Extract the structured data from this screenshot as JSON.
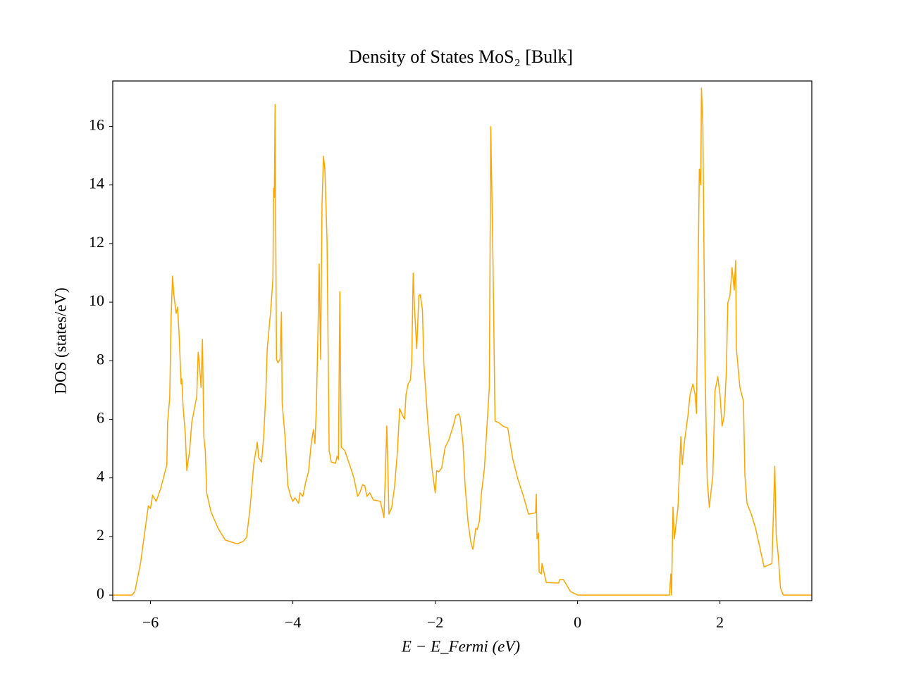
{
  "chart_data": {
    "type": "line",
    "title": "Density of States MoS₂ [Bulk]",
    "xlabel": "E − E_Fermi (eV)",
    "ylabel": "DOS (states/eV)",
    "color": "#ffa500",
    "xlim": [
      -6.53,
      3.29
    ],
    "ylim": [
      -0.19,
      17.55
    ],
    "xticks": [
      {
        "value": -6,
        "label": "−6"
      },
      {
        "value": -4,
        "label": "−4"
      },
      {
        "value": -2,
        "label": "−2"
      },
      0,
      2
    ],
    "yticks": [
      0,
      2,
      4,
      6,
      8,
      10,
      12,
      14,
      16
    ],
    "x": [
      -6.53,
      -6.26,
      -6.22,
      -6.14,
      -6.06,
      -6.03,
      -6.0,
      -5.97,
      -5.92,
      -5.86,
      -5.77,
      -5.76,
      -5.73,
      -5.71,
      -5.69,
      -5.67,
      -5.64,
      -5.62,
      -5.6,
      -5.57,
      -5.56,
      -5.54,
      -5.51,
      -5.49,
      -5.45,
      -5.42,
      -5.35,
      -5.33,
      -5.31,
      -5.29,
      -5.27,
      -5.25,
      -5.23,
      -5.21,
      -5.15,
      -5.05,
      -4.95,
      -4.85,
      -4.78,
      -4.7,
      -4.65,
      -4.6,
      -4.55,
      -4.5,
      -4.48,
      -4.44,
      -4.41,
      -4.38,
      -4.36,
      -4.31,
      -4.28,
      -4.27,
      -4.26,
      -4.25,
      -4.23,
      -4.21,
      -4.18,
      -4.16,
      -4.15,
      -4.11,
      -4.07,
      -4.03,
      -4.0,
      -3.97,
      -3.92,
      -3.9,
      -3.86,
      -3.82,
      -3.78,
      -3.74,
      -3.71,
      -3.69,
      -3.67,
      -3.65,
      -3.63,
      -3.61,
      -3.59,
      -3.57,
      -3.55,
      -3.52,
      -3.49,
      -3.46,
      -3.4,
      -3.38,
      -3.36,
      -3.34,
      -3.32,
      -3.27,
      -3.17,
      -3.14,
      -3.09,
      -3.06,
      -3.02,
      -2.99,
      -2.96,
      -2.92,
      -2.87,
      -2.77,
      -2.72,
      -2.68,
      -2.65,
      -2.61,
      -2.57,
      -2.53,
      -2.5,
      -2.46,
      -2.43,
      -2.41,
      -2.38,
      -2.35,
      -2.33,
      -2.31,
      -2.29,
      -2.26,
      -2.23,
      -2.21,
      -2.18,
      -2.16,
      -2.1,
      -2.04,
      -2.0,
      -1.98,
      -1.95,
      -1.91,
      -1.86,
      -1.81,
      -1.75,
      -1.71,
      -1.67,
      -1.65,
      -1.61,
      -1.58,
      -1.54,
      -1.5,
      -1.47,
      -1.43,
      -1.41,
      -1.38,
      -1.35,
      -1.31,
      -1.27,
      -1.24,
      -1.22,
      -1.19,
      -1.16,
      -1.11,
      -1.05,
      -0.98,
      -0.95,
      -0.91,
      -0.84,
      -0.76,
      -0.69,
      -0.59,
      -0.58,
      -0.57,
      -0.55,
      -0.54,
      -0.51,
      -0.5,
      -0.44,
      -0.27,
      -0.25,
      -0.2,
      -0.1,
      0,
      1.29,
      1.31,
      1.32,
      1.34,
      1.36,
      1.41,
      1.45,
      1.47,
      1.5,
      1.55,
      1.58,
      1.62,
      1.65,
      1.67,
      1.68,
      1.71,
      1.73,
      1.74,
      1.76,
      1.79,
      1.82,
      1.85,
      1.9,
      1.93,
      1.97,
      2.0,
      2.03,
      2.06,
      2.09,
      2.11,
      2.14,
      2.17,
      2.2,
      2.22,
      2.23,
      2.28,
      2.33,
      2.35,
      2.38,
      2.44,
      2.5,
      2.62,
      2.73,
      2.77,
      2.79,
      2.82,
      2.85,
      2.89,
      3.29
    ],
    "values": [
      0,
      0,
      0.12,
      1.08,
      2.52,
      3.05,
      2.96,
      3.41,
      3.2,
      3.61,
      4.45,
      5.89,
      6.73,
      9.5,
      10.89,
      10.22,
      9.62,
      9.83,
      9.01,
      7.21,
      7.38,
      6.37,
      5.48,
      4.25,
      4.93,
      5.89,
      6.78,
      8.29,
      7.81,
      7.09,
      8.73,
      5.41,
      4.93,
      3.49,
      2.84,
      2.28,
      1.88,
      1.8,
      1.75,
      1.83,
      1.97,
      3.0,
      4.45,
      5.22,
      4.69,
      4.54,
      5.41,
      6.85,
      8.41,
      9.74,
      10.82,
      13.89,
      13.58,
      16.75,
      8.05,
      7.93,
      8.05,
      9.66,
      6.56,
      5.41,
      3.73,
      3.37,
      3.2,
      3.32,
      3.13,
      3.49,
      3.37,
      3.85,
      4.21,
      5.22,
      5.65,
      5.17,
      6.37,
      8.65,
      11.3,
      8.05,
      13.34,
      14.98,
      14.54,
      12.14,
      4.93,
      4.54,
      4.5,
      4.74,
      4.62,
      10.36,
      5.05,
      4.93,
      4.21,
      3.97,
      3.37,
      3.49,
      3.77,
      3.73,
      3.37,
      3.49,
      3.25,
      3.2,
      2.64,
      5.77,
      2.76,
      3.0,
      3.73,
      4.93,
      6.37,
      6.13,
      6.01,
      6.85,
      7.21,
      7.33,
      7.93,
      10.99,
      9.74,
      8.41,
      10.22,
      10.26,
      9.74,
      7.93,
      5.77,
      4.21,
      3.49,
      4.25,
      4.21,
      4.33,
      5.05,
      5.29,
      5.75,
      6.13,
      6.18,
      6.06,
      5.17,
      3.73,
      2.52,
      1.8,
      1.56,
      2.28,
      2.24,
      2.52,
      3.49,
      4.3,
      5.89,
      7.09,
      15.99,
      11.66,
      5.94,
      5.89,
      5.77,
      5.7,
      5.22,
      4.64,
      3.97,
      3.37,
      2.76,
      2.81,
      3.44,
      1.92,
      2.12,
      0.79,
      0.72,
      1.08,
      0.43,
      0.41,
      0.53,
      0.53,
      0.12,
      0,
      0,
      0.72,
      0,
      3.0,
      1.92,
      3.0,
      5.41,
      4.45,
      5.22,
      6.13,
      6.85,
      7.21,
      6.85,
      6.2,
      8.29,
      14.54,
      14.01,
      17.31,
      15.99,
      7.81,
      3.97,
      3.0,
      4.09,
      6.97,
      7.45,
      6.85,
      5.77,
      6.13,
      7.69,
      9.98,
      10.22,
      11.18,
      10.41,
      11.42,
      8.44,
      7.09,
      6.61,
      4.09,
      3.13,
      2.76,
      2.28,
      0.96,
      1.08,
      4.4,
      2.04,
      1.32,
      0.24,
      0,
      0
    ]
  }
}
